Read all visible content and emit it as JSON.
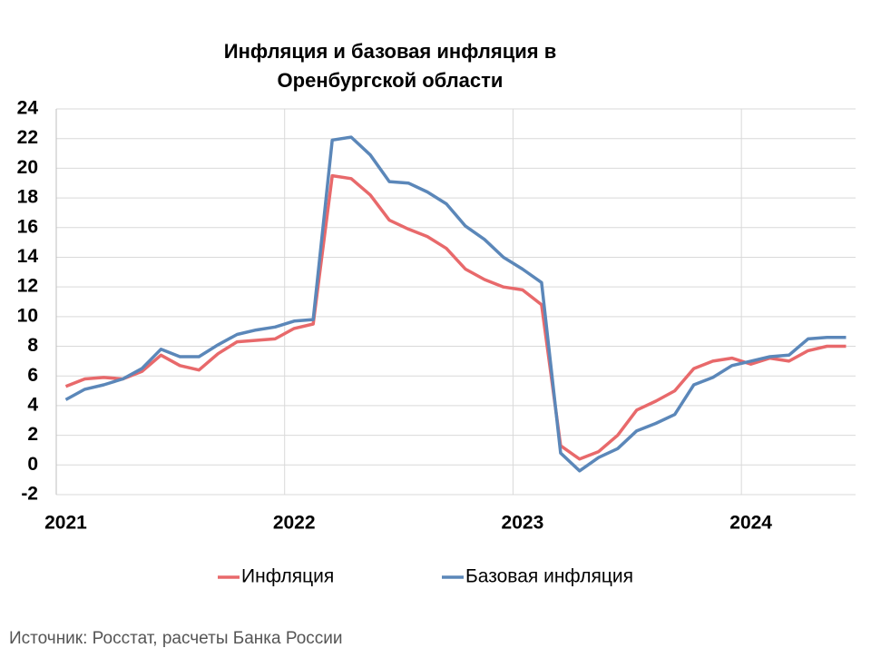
{
  "chart_data": {
    "type": "line",
    "title": [
      "Инфляция и базовая инфляция в",
      "Оренбургской области"
    ],
    "categories": [
      "2021",
      null,
      null,
      null,
      null,
      null,
      null,
      null,
      null,
      null,
      null,
      null,
      "2022",
      null,
      null,
      null,
      null,
      null,
      null,
      null,
      null,
      null,
      null,
      null,
      "2023",
      null,
      null,
      null,
      null,
      null,
      null,
      null,
      null,
      null,
      null,
      null,
      "2024",
      null,
      null,
      null,
      null,
      null
    ],
    "series": [
      {
        "name": "Инфляция",
        "color": "#e8696b",
        "values": [
          5.3,
          5.8,
          5.9,
          5.8,
          6.3,
          7.4,
          6.7,
          6.4,
          7.5,
          8.3,
          8.4,
          8.5,
          9.2,
          9.5,
          19.5,
          19.3,
          18.2,
          16.5,
          15.9,
          15.4,
          14.6,
          13.2,
          12.5,
          12.0,
          11.8,
          10.8,
          1.3,
          0.4,
          0.9,
          2.0,
          3.7,
          4.3,
          5.0,
          6.5,
          7.0,
          7.2,
          6.8,
          7.2,
          7.0,
          7.7,
          8.0,
          8.0
        ]
      },
      {
        "name": "Базовая инфляция",
        "color": "#5b87b9",
        "values": [
          4.4,
          5.1,
          5.4,
          5.8,
          6.5,
          7.8,
          7.3,
          7.3,
          8.1,
          8.8,
          9.1,
          9.3,
          9.7,
          9.8,
          21.9,
          22.1,
          20.9,
          19.1,
          19.0,
          18.4,
          17.6,
          16.1,
          15.2,
          14.0,
          13.2,
          12.3,
          0.8,
          -0.4,
          0.5,
          1.1,
          2.3,
          2.8,
          3.4,
          5.4,
          5.9,
          6.7,
          7.0,
          7.3,
          7.4,
          8.5,
          8.6,
          8.6
        ]
      }
    ],
    "ylim": [
      -2,
      24
    ],
    "yticks": [
      -2,
      0,
      2,
      4,
      6,
      8,
      10,
      12,
      14,
      16,
      18,
      20,
      22,
      24
    ],
    "grid": true,
    "legend": "bottom",
    "source": "Источник: Росстат, расчеты Банка России"
  }
}
